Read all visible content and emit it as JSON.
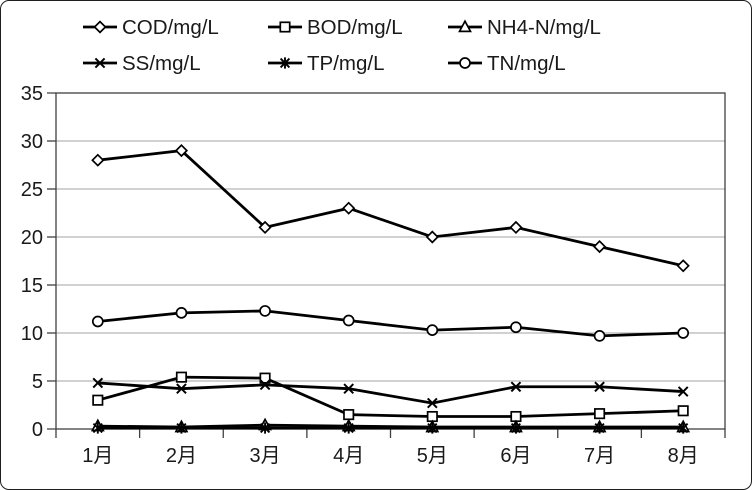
{
  "figure": {
    "background": "#ffffff",
    "border_color": "#1f1f1f",
    "line_color": "#000000",
    "grid_color": "#a3a3a3",
    "axis_color": "#404040",
    "text_color": "#1a1a1a"
  },
  "chart_data": {
    "type": "line",
    "title": "",
    "xlabel": "",
    "ylabel": "",
    "categories": [
      "1月",
      "2月",
      "3月",
      "4月",
      "5月",
      "6月",
      "7月",
      "8月"
    ],
    "series": [
      {
        "name": "COD/mg/L",
        "marker": "diamond",
        "values": [
          28,
          29,
          21,
          23,
          20,
          21,
          19,
          17
        ]
      },
      {
        "name": "BOD/mg/L",
        "marker": "square",
        "values": [
          3,
          5.4,
          5.3,
          1.5,
          1.3,
          1.3,
          1.6,
          1.9
        ]
      },
      {
        "name": "NH4-N/mg/L",
        "marker": "triangle",
        "values": [
          0.3,
          0.2,
          0.4,
          0.3,
          0.2,
          0.2,
          0.2,
          0.2
        ]
      },
      {
        "name": "SS/mg/L",
        "marker": "x",
        "values": [
          4.8,
          4.2,
          4.6,
          4.2,
          2.7,
          4.4,
          4.4,
          3.9
        ]
      },
      {
        "name": "TP/mg/L",
        "marker": "asterisk",
        "values": [
          0.1,
          0.1,
          0.1,
          0.1,
          0.1,
          0.1,
          0.1,
          0.1
        ]
      },
      {
        "name": "TN/mg/L",
        "marker": "circle",
        "values": [
          11.2,
          12.1,
          12.3,
          11.3,
          10.3,
          10.6,
          9.7,
          10
        ]
      }
    ],
    "ylim": [
      0,
      35
    ],
    "yticks": [
      0,
      5,
      10,
      15,
      20,
      25,
      30,
      35
    ],
    "grid": "horizontal",
    "legend_position": "top",
    "legend_rows": 2,
    "legend_columns": 3
  }
}
